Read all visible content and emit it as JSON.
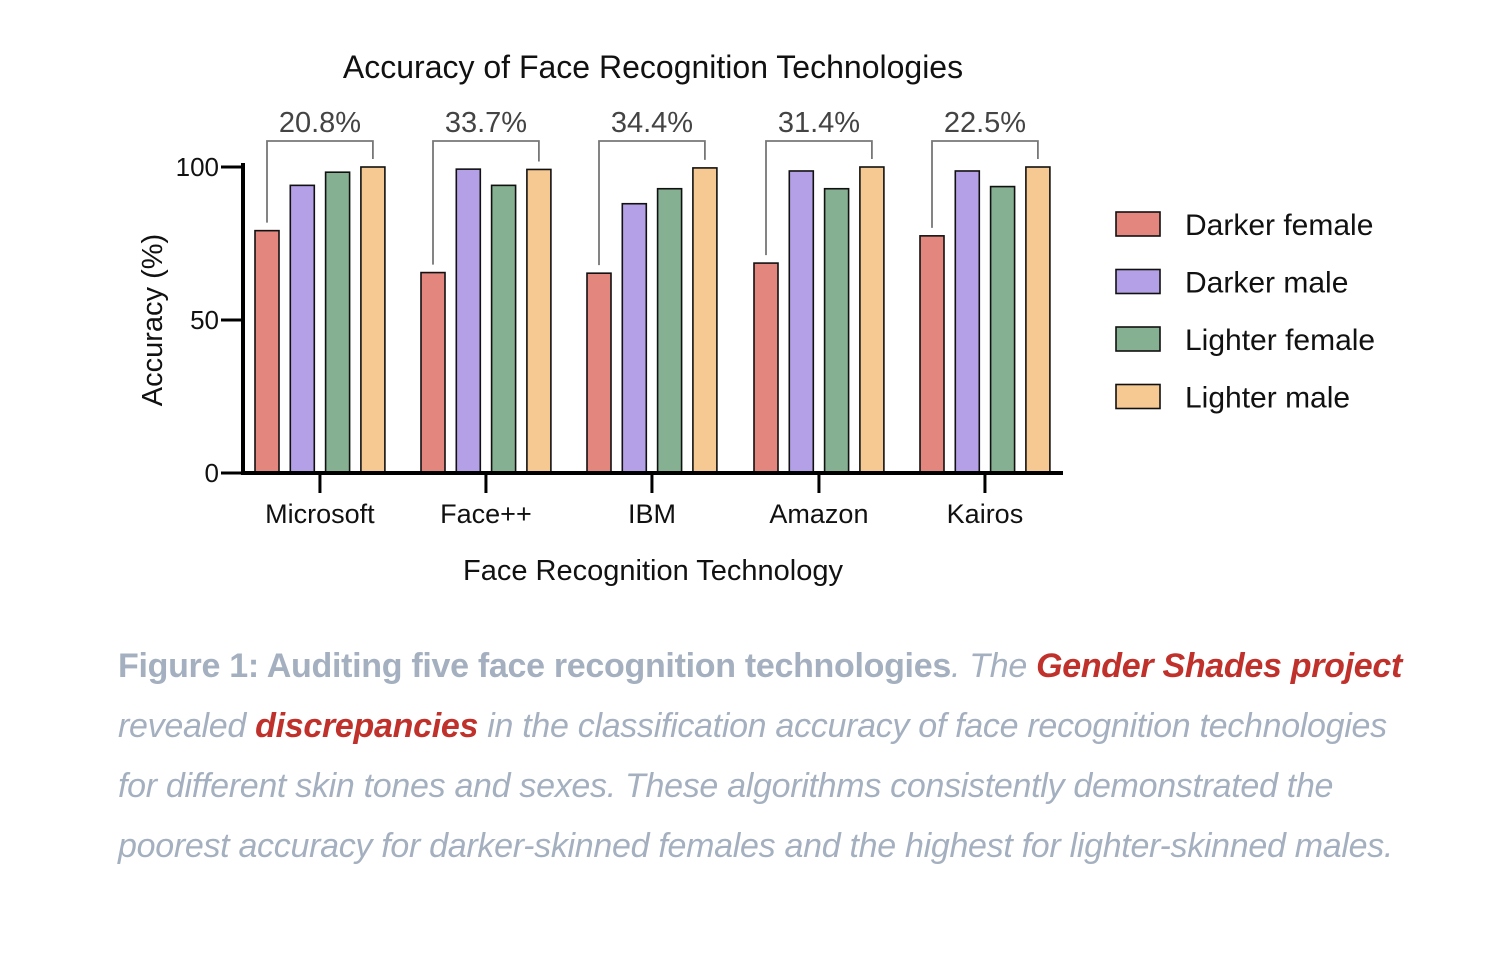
{
  "chart_data": {
    "type": "bar",
    "title": "Accuracy of Face Recognition Technologies",
    "xlabel": "Face Recognition Technology",
    "ylabel": "Accuracy (%)",
    "ylim": [
      0,
      100
    ],
    "yticks": [
      "0",
      "50",
      "100"
    ],
    "categories": [
      "Microsoft",
      "Face++",
      "IBM",
      "Amazon",
      "Kairos"
    ],
    "series": [
      {
        "name": "Darker female",
        "color": "#e3867e",
        "values": [
          79.2,
          65.5,
          65.3,
          68.6,
          77.5
        ]
      },
      {
        "name": "Darker male",
        "color": "#b4a0e6",
        "values": [
          94.0,
          99.3,
          88.0,
          98.7,
          98.7
        ]
      },
      {
        "name": "Lighter female",
        "color": "#85b091",
        "values": [
          98.3,
          94.0,
          92.9,
          92.9,
          93.6
        ]
      },
      {
        "name": "Lighter male",
        "color": "#f6c892",
        "values": [
          100.0,
          99.2,
          99.7,
          100.0,
          100.0
        ]
      }
    ],
    "gap_labels": [
      "20.8%",
      "33.7%",
      "34.4%",
      "31.4%",
      "22.5%"
    ],
    "legend_position": "right",
    "grid": false
  },
  "caption": {
    "bold_part": "Figure 1: Auditing five face recognition technologies",
    "dot": ".",
    "text_1": " The ",
    "link_1": "Gender Shades project",
    "text_2": " revealed ",
    "link_2": "discrepancies",
    "text_3": " in the classification accuracy of face recognition technologies for different skin tones and sexes. These algorithms consistently demonstrated the poorest accuracy for darker-skinned females and the highest for lighter-skinned males."
  }
}
